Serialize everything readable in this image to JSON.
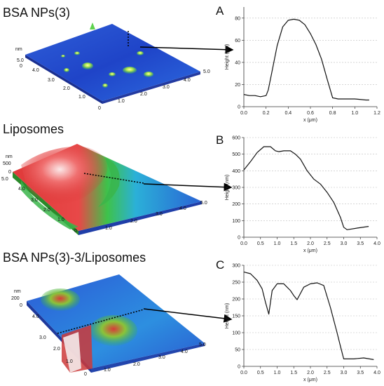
{
  "panels": [
    {
      "title": "BSA NPs(3)",
      "letter": "A",
      "afm": {
        "z_unit": "nm",
        "z_ticks": [
          "5.0",
          "0"
        ],
        "left_ticks": [
          "4.0",
          "3.0",
          "2.0",
          "1.0",
          "0"
        ],
        "right_ticks": [
          "1.0",
          "2.0",
          "3.0",
          "4.0",
          "5.0"
        ]
      }
    },
    {
      "title": "Liposomes",
      "letter": "B",
      "afm": {
        "z_unit": "nm",
        "z_ticks": [
          "500",
          "0"
        ],
        "left_ticks": [
          "5.0",
          "4.0",
          "3.0",
          "2.0",
          "1.0",
          "0"
        ],
        "right_ticks": [
          "1.0",
          "2.0",
          "3.0",
          "4.0",
          "5.0"
        ]
      }
    },
    {
      "title": "BSA NPs(3)-3/Liposomes",
      "letter": "C",
      "afm": {
        "z_unit": "nm",
        "z_ticks": [
          "200",
          "0"
        ],
        "left_ticks": [
          "4.0",
          "3.0",
          "2.0",
          "1.0",
          "0"
        ],
        "right_ticks": [
          "1.0",
          "2.0",
          "3.0",
          "4.0",
          "5.0"
        ]
      }
    }
  ],
  "chart_data": [
    {
      "type": "line",
      "title": "",
      "xlabel": "x (μm)",
      "ylabel": "Height (nm)",
      "xlim": [
        0.0,
        1.2
      ],
      "ylim": [
        0,
        90
      ],
      "xticks": [
        "0.0",
        "0.2",
        "0.4",
        "0.6",
        "0.8",
        "1.0",
        "1.2"
      ],
      "yticks": [
        "0",
        "20",
        "40",
        "60",
        "80"
      ],
      "grid": "horizontal-dashed",
      "x": [
        0.0,
        0.05,
        0.1,
        0.15,
        0.2,
        0.22,
        0.25,
        0.3,
        0.35,
        0.4,
        0.45,
        0.5,
        0.55,
        0.6,
        0.65,
        0.7,
        0.75,
        0.8,
        0.85,
        0.9,
        1.0,
        1.1,
        1.13
      ],
      "y": [
        11,
        10,
        10,
        9,
        10,
        15,
        30,
        55,
        72,
        78,
        79,
        78,
        74,
        66,
        56,
        43,
        25,
        8,
        7,
        7,
        7,
        6,
        6
      ]
    },
    {
      "type": "line",
      "title": "",
      "xlabel": "x (μm)",
      "ylabel": "Height (nm)",
      "xlim": [
        0.0,
        4.0
      ],
      "ylim": [
        0,
        600
      ],
      "xticks": [
        "0.0",
        "0.5",
        "1.0",
        "1.5",
        "2.0",
        "2.5",
        "3.0",
        "3.5",
        "4.0"
      ],
      "yticks": [
        "0",
        "100",
        "200",
        "300",
        "400",
        "500",
        "600"
      ],
      "grid": "horizontal-dashed",
      "x": [
        0.0,
        0.2,
        0.4,
        0.6,
        0.8,
        0.95,
        1.05,
        1.2,
        1.4,
        1.55,
        1.7,
        1.9,
        2.1,
        2.3,
        2.5,
        2.7,
        2.9,
        3.0,
        3.1,
        3.4,
        3.75
      ],
      "y": [
        405,
        455,
        510,
        545,
        545,
        520,
        515,
        520,
        520,
        500,
        470,
        400,
        350,
        320,
        270,
        210,
        120,
        60,
        45,
        55,
        65
      ]
    },
    {
      "type": "line",
      "title": "",
      "xlabel": "x (μm)",
      "ylabel": "Height (nm)",
      "xlim": [
        0.0,
        4.0
      ],
      "ylim": [
        0,
        300
      ],
      "xticks": [
        "0.0",
        "0.5",
        "1.0",
        "1.5",
        "2.0",
        "2.5",
        "3.0",
        "3.5",
        "4.0"
      ],
      "yticks": [
        "0",
        "50",
        "100",
        "150",
        "200",
        "250",
        "300"
      ],
      "grid": "horizontal-dashed",
      "x": [
        0.0,
        0.2,
        0.4,
        0.55,
        0.65,
        0.75,
        0.85,
        1.0,
        1.2,
        1.4,
        1.5,
        1.6,
        1.8,
        2.0,
        2.2,
        2.4,
        2.6,
        2.8,
        2.9,
        3.0,
        3.3,
        3.6,
        3.9
      ],
      "y": [
        280,
        275,
        255,
        230,
        190,
        155,
        225,
        245,
        245,
        225,
        210,
        198,
        235,
        245,
        248,
        240,
        175,
        100,
        60,
        22,
        22,
        25,
        20
      ]
    }
  ]
}
